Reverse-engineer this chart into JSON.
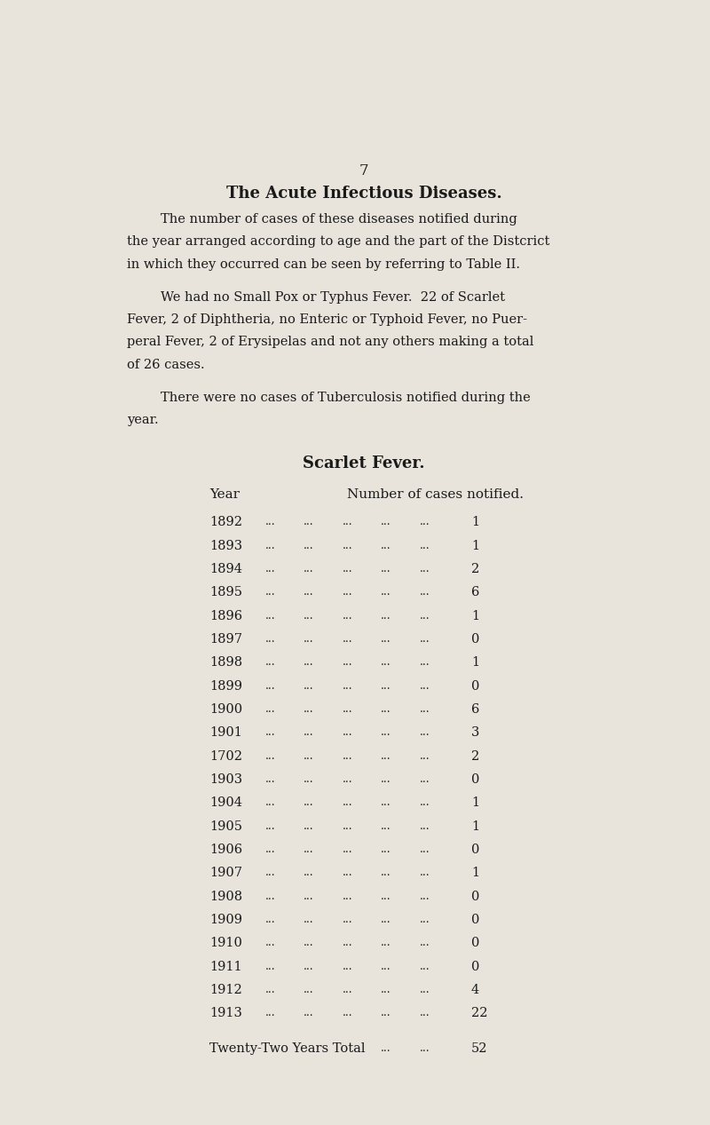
{
  "page_number": "7",
  "background_color": "#e8e4dc",
  "title": "The Acute Infectious Diseases.",
  "paragraph1_indent": "The number of cases of these diseases notified during",
  "paragraph1_rest": [
    "the year arranged according to age and the part of the Distcrict",
    "in which they occurred can be seen by referring to Table II."
  ],
  "paragraph2_indent": "We had no Small Pox or Typhus Fever.  22 of Scarlet",
  "paragraph2_rest": [
    "Fever, 2 of Diphtheria, no Enteric or Typhoid Fever, no Puer-",
    "peral Fever, 2 of Erysipelas and not any others making a total",
    "of 26 cases."
  ],
  "paragraph3_indent": "There were no cases of Tuberculosis notified during the",
  "paragraph3_rest": [
    "year."
  ],
  "table_title": "Scarlet Fever.",
  "col_header_year": "Year",
  "col_header_cases": "Number of cases notified.",
  "years": [
    "1892",
    "1893",
    "1894",
    "1895",
    "1896",
    "1897",
    "1898",
    "1899",
    "1900",
    "1901",
    "1702",
    "1903",
    "1904",
    "1905",
    "1906",
    "1907",
    "1908",
    "1909",
    "1910",
    "1911",
    "1912",
    "1913"
  ],
  "cases": [
    1,
    1,
    2,
    6,
    1,
    0,
    1,
    0,
    6,
    3,
    2,
    0,
    1,
    1,
    0,
    1,
    0,
    0,
    0,
    0,
    4,
    22
  ],
  "total_label": "Twenty-Two Years Total",
  "total_value": "52",
  "dots": "...",
  "text_color": "#1a1a1a"
}
